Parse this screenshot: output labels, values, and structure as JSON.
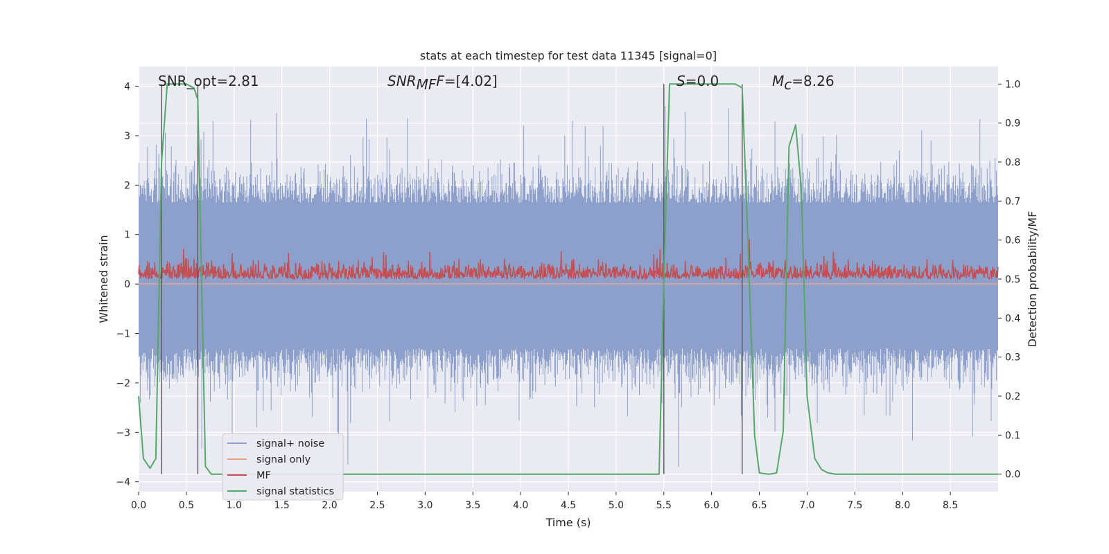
{
  "chart_data": {
    "type": "line",
    "title": "stats at each timestep for test data 11345 [signal=0]",
    "xlabel": "Time (s)",
    "ylabel": "Whitened strain",
    "y2label": "Detection probability/MF",
    "xlim": [
      0.0,
      9.0
    ],
    "ylim": [
      -4.2,
      4.4
    ],
    "y2lim": [
      -0.045,
      1.045
    ],
    "xticks": [
      "0.0",
      "0.5",
      "1.0",
      "1.5",
      "2.0",
      "2.5",
      "3.0",
      "3.5",
      "4.0",
      "4.5",
      "5.0",
      "5.5",
      "6.0",
      "6.5",
      "7.0",
      "7.5",
      "8.0",
      "8.5"
    ],
    "yticks": [
      "4",
      "3",
      "2",
      "1",
      "0",
      "−1",
      "−2",
      "−3",
      "−4"
    ],
    "y2ticks": [
      "1.0",
      "0.9",
      "0.8",
      "0.7",
      "0.6",
      "0.5",
      "0.4",
      "0.3",
      "0.2",
      "0.1",
      "0.0"
    ],
    "grid": true,
    "annotations": {
      "snr_opt": "SNR_opt=2.81",
      "snr_mf_main": "SNR",
      "snr_mf_sub": "MF",
      "snr_mf_rest": "=[4.02]",
      "s_main": "S",
      "s_rest": "=0.0",
      "mc_main": "M",
      "mc_sub": "c",
      "mc_rest": "=8.26"
    },
    "vertical_lines_x": [
      0.24,
      0.62,
      5.5,
      6.32
    ],
    "series": [
      {
        "name": "signal+ noise",
        "color": "#8da0cb",
        "description": "whitened noise, roughly ±1.8 with spikes to ±4",
        "envelope_upper": [
          2.6,
          4.0
        ],
        "envelope_lower": [
          -2.0,
          -3.7
        ]
      },
      {
        "name": "signal only",
        "color": "#e8a488",
        "constant_value": 0.0
      },
      {
        "name": "MF",
        "color": "#c44e52",
        "description": "matched filter output on right axis, about 0.49 to 0.60"
      },
      {
        "name": "signal statistics",
        "color": "#55a868",
        "axis": "right",
        "x": [
          0.0,
          0.05,
          0.12,
          0.18,
          0.24,
          0.3,
          0.32,
          0.4,
          0.5,
          0.58,
          0.62,
          0.7,
          0.76,
          0.85,
          1.5,
          3.0,
          5.0,
          5.45,
          5.5,
          5.56,
          5.65,
          6.0,
          6.25,
          6.32,
          6.38,
          6.45,
          6.5,
          6.6,
          6.68,
          6.75,
          6.81,
          6.88,
          6.94,
          7.0,
          7.08,
          7.15,
          7.22,
          7.3,
          8.0,
          9.0
        ],
        "y": [
          0.2,
          0.04,
          0.015,
          0.04,
          0.8,
          1.0,
          1.0,
          1.0,
          1.0,
          0.99,
          0.96,
          0.02,
          0.0,
          0.0,
          0.0,
          0.0,
          0.0,
          0.0,
          0.5,
          1.0,
          1.0,
          1.0,
          1.0,
          0.99,
          0.6,
          0.1,
          0.003,
          0.0,
          0.003,
          0.11,
          0.84,
          0.895,
          0.73,
          0.2,
          0.04,
          0.012,
          0.003,
          0.0,
          0.0,
          0.0
        ]
      }
    ],
    "legend": {
      "location": "lower-left",
      "entries": [
        {
          "label": "signal+ noise",
          "color": "#8da0cb"
        },
        {
          "label": "signal only",
          "color": "#e8a488"
        },
        {
          "label": "MF",
          "color": "#c44e52"
        },
        {
          "label": "signal statistics",
          "color": "#55a868"
        }
      ]
    }
  }
}
